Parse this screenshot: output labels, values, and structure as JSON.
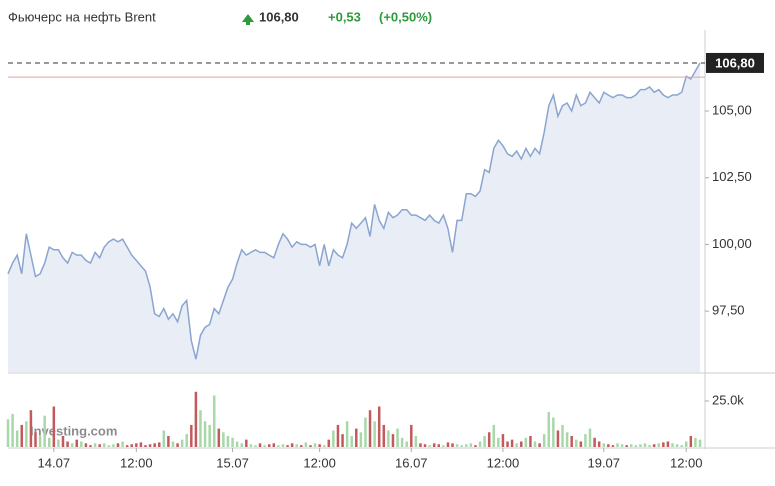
{
  "chart_data": {
    "type": "area",
    "title": "Фьючерс на нефть Brent",
    "price_label": "106,80",
    "change": "+0,53",
    "change_pct": "(+0,50%)",
    "watermark": "Investing.com",
    "last_price": 106.8,
    "previous_close": 106.27,
    "color": "#8aa5cf",
    "fill": "#e9edf6",
    "up_color": "#a8d8aa",
    "down_color": "#c25a5c",
    "xlim": [
      0,
      151
    ],
    "xticks": [
      {
        "value": 10,
        "label": "14.07"
      },
      {
        "value": 28,
        "label": "12:00"
      },
      {
        "value": 49,
        "label": "15.07"
      },
      {
        "value": 68,
        "label": "12:00"
      },
      {
        "value": 88,
        "label": "16.07"
      },
      {
        "value": 108,
        "label": "12:00"
      },
      {
        "value": 130,
        "label": "19.07"
      },
      {
        "value": 148,
        "label": "12:00"
      }
    ],
    "ylim": [
      95.22,
      107.66
    ],
    "yticks": [
      {
        "value": 97.5,
        "label": "97,50"
      },
      {
        "value": 100,
        "label": "100,00"
      },
      {
        "value": 102.5,
        "label": "102,50"
      },
      {
        "value": 105,
        "label": "105,00"
      }
    ],
    "y2lim": [
      0,
      37500
    ],
    "y2ticks": [
      {
        "value": 25000,
        "label": "25.0k"
      }
    ],
    "series": [
      {
        "values": [
          98.9,
          99.3,
          99.6,
          98.9,
          100.4,
          99.6,
          98.8,
          98.9,
          99.3,
          99.9,
          99.8,
          99.8,
          99.5,
          99.3,
          99.7,
          99.6,
          99.6,
          99.4,
          99.3,
          99.7,
          99.5,
          99.9,
          100.1,
          100.2,
          100.1,
          100.2,
          99.9,
          99.6,
          99.4,
          99.2,
          99.0,
          98.4,
          97.4,
          97.3,
          97.6,
          97.2,
          97.4,
          97.1,
          97.7,
          97.9,
          96.4,
          95.7,
          96.6,
          96.9,
          97.0,
          97.6,
          97.4,
          97.9,
          98.4,
          98.7,
          99.3,
          99.8,
          99.6,
          99.7,
          99.8,
          99.7,
          99.7,
          99.6,
          99.5,
          100.0,
          100.4,
          100.2,
          99.9,
          100.1,
          100.0,
          100.0,
          99.9,
          100.0,
          99.2,
          100.0,
          99.2,
          99.8,
          99.6,
          99.5,
          100.0,
          100.8,
          100.6,
          100.8,
          101.0,
          100.3,
          101.5,
          100.9,
          100.6,
          101.2,
          101.0,
          101.1,
          101.3,
          101.3,
          101.1,
          101.1,
          101.0,
          100.9,
          101.1,
          100.9,
          100.8,
          101.1,
          100.6,
          99.7,
          100.9,
          100.9,
          101.9,
          101.9,
          101.8,
          102.0,
          102.8,
          102.7,
          103.6,
          103.9,
          103.7,
          103.4,
          103.3,
          103.5,
          103.2,
          103.6,
          103.3,
          103.6,
          103.4,
          104.2,
          105.2,
          105.6,
          104.8,
          105.2,
          105.3,
          105.0,
          105.6,
          105.2,
          105.3,
          105.7,
          105.5,
          105.3,
          105.7,
          105.6,
          105.5,
          105.6,
          105.6,
          105.5,
          105.5,
          105.6,
          105.8,
          105.8,
          105.9,
          105.7,
          105.8,
          105.6,
          105.5,
          105.6,
          105.6,
          105.7,
          106.3,
          106.2,
          106.5,
          106.8
        ]
      },
      {
        "axis": "y2",
        "values": [
          15000,
          18000,
          9000,
          12000,
          14000,
          20000,
          8000,
          6000,
          17000,
          5000,
          22000,
          4000,
          6000,
          3000,
          2000,
          4000,
          3000,
          2000,
          1000,
          2000,
          1500,
          2000,
          1000,
          1500,
          2000,
          3000,
          1000,
          1500,
          2000,
          2500,
          1000,
          1500,
          2000,
          2500,
          9000,
          6000,
          3000,
          2000,
          4000,
          7000,
          12000,
          30000,
          20000,
          14000,
          12000,
          28000,
          10000,
          8000,
          6000,
          5000,
          3000,
          2000,
          4000,
          1500,
          1000,
          2000,
          1000,
          1500,
          2000,
          1000,
          1500,
          1000,
          2000,
          1500,
          1000,
          2500,
          1000,
          2000,
          1500,
          1000,
          4000,
          9000,
          12000,
          7000,
          14000,
          6000,
          10000,
          8000,
          16000,
          20000,
          14000,
          22000,
          12000,
          9000,
          7000,
          10000,
          5000,
          3000,
          12000,
          6000,
          2000,
          1500,
          1000,
          2000,
          1500,
          1000,
          2500,
          2000,
          1500,
          1000,
          1500,
          2000,
          1000,
          3000,
          6000,
          8000,
          12000,
          5000,
          7000,
          3000,
          4000,
          2000,
          3000,
          5000,
          6000,
          3000,
          2000,
          7000,
          19000,
          16000,
          9000,
          12000,
          8000,
          6000,
          4000,
          3000,
          7000,
          10000,
          5000,
          3000,
          2000,
          1500,
          1000,
          2000,
          1500,
          1000,
          1500,
          1000,
          1500,
          2000,
          1000,
          1500,
          2000,
          2500,
          3000,
          2000,
          1500,
          1000,
          3000,
          6000,
          5000,
          4000
        ]
      }
    ]
  }
}
